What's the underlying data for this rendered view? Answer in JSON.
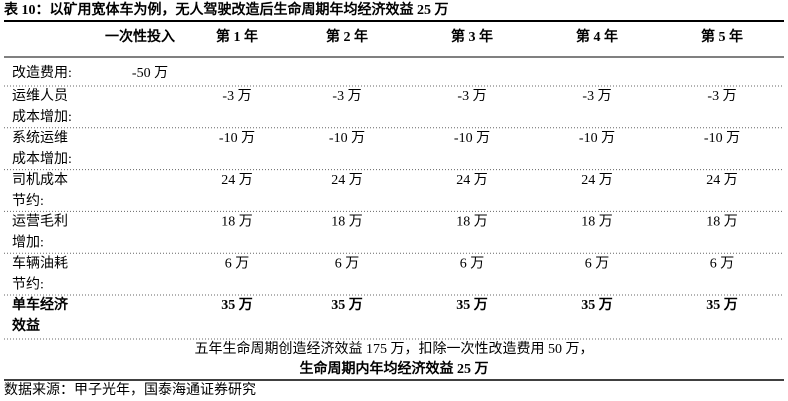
{
  "title": "表 10：以矿用宽体车为例，无人驾驶改造后生命周期年均经济效益 25 万",
  "table": {
    "header": [
      "一次性投入",
      "第 1 年",
      "第 2 年",
      "第 3 年",
      "第 4 年",
      "第 5 年"
    ],
    "rows": [
      {
        "label": [
          "改造费用:"
        ],
        "initial": "-50 万"
      },
      {
        "label": [
          "运维人员",
          "成本增加:"
        ],
        "years": [
          "-3 万",
          "-3 万",
          "-3 万",
          "-3 万",
          "-3 万"
        ]
      },
      {
        "label": [
          "系统运维",
          "成本增加:"
        ],
        "years": [
          "-10 万",
          "-10 万",
          "-10 万",
          "-10 万",
          "-10 万"
        ]
      },
      {
        "label": [
          "司机成本",
          "节约:"
        ],
        "years": [
          "24 万",
          "24 万",
          "24 万",
          "24 万",
          "24 万"
        ]
      },
      {
        "label": [
          "运营毛利",
          "增加:"
        ],
        "years": [
          "18 万",
          "18 万",
          "18 万",
          "18 万",
          "18 万"
        ]
      },
      {
        "label": [
          "车辆油耗",
          "节约:"
        ],
        "years": [
          "6 万",
          "6 万",
          "6 万",
          "6 万",
          "6 万"
        ]
      },
      {
        "label": [
          "单车经济",
          "效益"
        ],
        "years": [
          "35 万",
          "35 万",
          "35 万",
          "35 万",
          "35 万"
        ],
        "bold": true
      }
    ]
  },
  "summary": [
    "五年生命周期创造经济效益 175 万，扣除一次性改造费用 50 万，",
    "生命周期内年均经济效益 25 万"
  ],
  "source": "数据来源：甲子光年，国泰海通证券研究"
}
